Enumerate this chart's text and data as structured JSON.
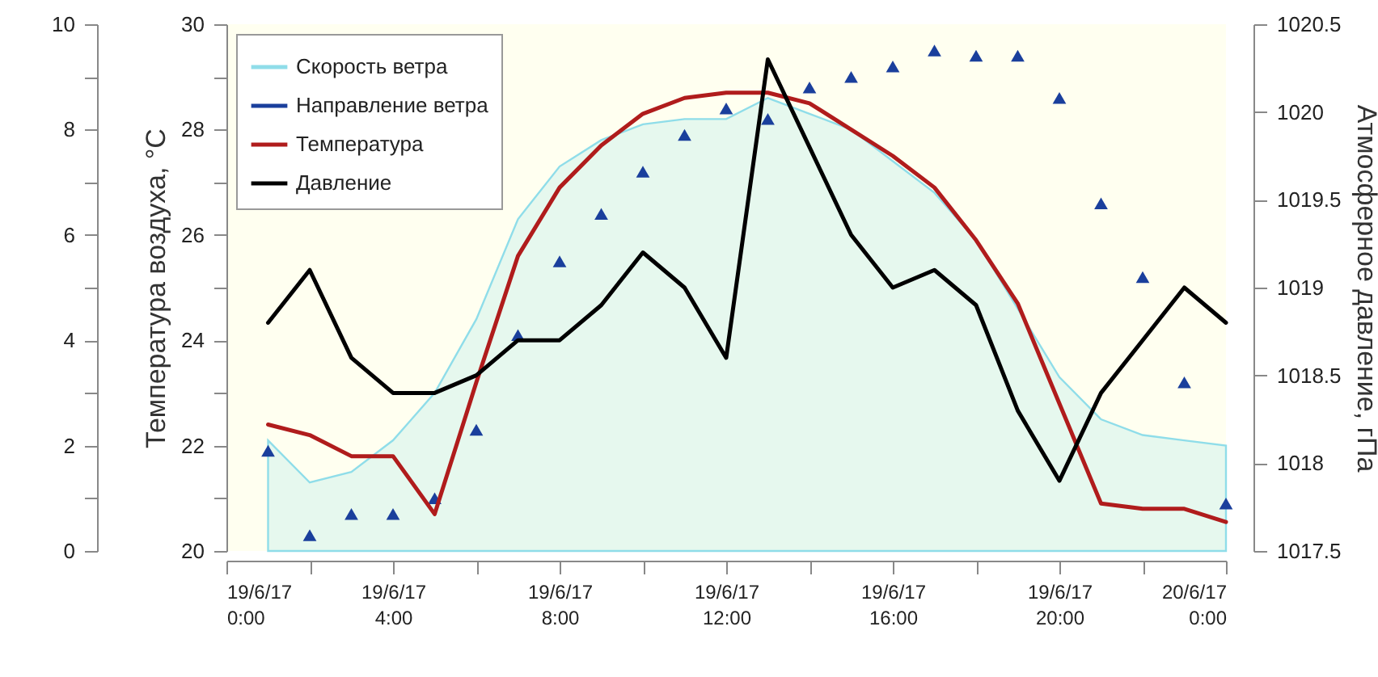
{
  "chart_data": {
    "type": "line",
    "ylabel": "Температура воздуха, °C",
    "y2label": "Атмосферное давление, гПа",
    "x": [
      "--06-19T01:00",
      "--06-19T02:00",
      "--06-19T03:00",
      "--06-19T04:00",
      "--06-19T05:00",
      "--06-19T06:00",
      "--06-19T07:00",
      "--06-19T08:00",
      "--06-19T09:00",
      "--06-19T10:00",
      "--06-19T11:00",
      "--06-19T12:00",
      "--06-19T13:00",
      "--06-19T14:00",
      "--06-19T15:00",
      "--06-19T16:00",
      "--06-19T17:00",
      "--06-19T18:00",
      "--06-19T19:00",
      "--06-19T20:00",
      "--06-19T21:00",
      "--06-19T22:00",
      "--06-19T23:00",
      "--06-20T00:00"
    ],
    "xlim": [
      "--06-19T00:00",
      "--06-20T00:00"
    ],
    "xticks": [
      {
        "value": "--06-19T00:00",
        "label": "19/6/17\n0:00"
      },
      {
        "value": "--06-19T02:00",
        "label": null
      },
      {
        "value": "--06-19T04:00",
        "label": "19/6/17\n4:00"
      },
      {
        "value": "--06-19T06:00",
        "label": null
      },
      {
        "value": "--06-19T08:00",
        "label": "19/6/17\n8:00"
      },
      {
        "value": "--06-19T10:00",
        "label": null
      },
      {
        "value": "--06-19T12:00",
        "label": "19/6/17\n12:00"
      },
      {
        "value": "--06-19T14:00",
        "label": null
      },
      {
        "value": "--06-19T16:00",
        "label": "19/6/17\n16:00"
      },
      {
        "value": "--06-19T18:00",
        "label": null
      },
      {
        "value": "--06-19T20:00",
        "label": "19/6/17\n20:00"
      },
      {
        "value": "--06-19T22:00",
        "label": null
      },
      {
        "value": "--06-20T00:00",
        "label": "20/6/17\n0:00"
      }
    ],
    "ylim": [
      20,
      30
    ],
    "yticks": [
      20,
      {
        "value": 21,
        "label": null
      },
      22,
      {
        "value": 23,
        "label": null
      },
      24,
      {
        "value": 25,
        "label": null
      },
      26,
      {
        "value": 27,
        "label": null
      },
      28,
      {
        "value": 29,
        "label": null
      },
      30
    ],
    "y2lim": [
      1017.5,
      1020.5
    ],
    "y2ticks": [
      1017.5,
      1018,
      1018.5,
      1019,
      1019.5,
      1020,
      1020.5
    ],
    "y3lim": [
      0,
      10
    ],
    "y3ticks": [
      0,
      {
        "value": 1,
        "label": null
      },
      2,
      {
        "value": 3,
        "label": null
      },
      4,
      {
        "value": 5,
        "label": null
      },
      6,
      {
        "value": 7,
        "label": null
      },
      8,
      {
        "value": 9,
        "label": null
      },
      10
    ],
    "legend": "top left",
    "series": [
      {
        "name": "Скорость ветра",
        "type": "area",
        "axis": "y3",
        "color": "#8fdde9",
        "values": [
          2.1,
          1.3,
          1.5,
          2.1,
          3.0,
          4.4,
          6.3,
          7.3,
          7.8,
          8.1,
          8.2,
          8.2,
          8.6,
          8.3,
          8.0,
          7.4,
          6.8,
          5.9,
          4.6,
          3.3,
          2.5,
          2.2,
          2.1,
          2.0
        ]
      },
      {
        "name": "Направление ветра",
        "type": "scatter",
        "axis": "y3",
        "marker": "triangle",
        "color": "#1a3f9c",
        "values": [
          1.9,
          0.3,
          0.7,
          0.7,
          1.0,
          2.3,
          4.1,
          5.5,
          6.4,
          7.2,
          7.9,
          8.4,
          8.2,
          8.8,
          9.0,
          9.2,
          9.5,
          9.4,
          9.4,
          8.6,
          6.6,
          5.2,
          3.2,
          0.9
        ]
      },
      {
        "name": "Температура",
        "axis": "y",
        "color": "#b01c1c",
        "values": [
          22.4,
          22.2,
          21.8,
          21.8,
          20.7,
          23.2,
          25.6,
          26.9,
          27.7,
          28.3,
          28.6,
          28.7,
          28.7,
          28.5,
          28.0,
          27.5,
          26.9,
          25.9,
          24.7,
          22.8,
          20.9,
          20.8,
          20.8,
          20.55
        ]
      },
      {
        "name": "Давление",
        "axis": "y2",
        "color": "#000000",
        "values": [
          1018.8,
          1019.1,
          1018.6,
          1018.4,
          1018.4,
          1018.5,
          1018.7,
          1018.7,
          1018.9,
          1019.2,
          1019.0,
          1018.6,
          1020.3,
          1019.8,
          1019.3,
          1019.0,
          1019.1,
          1018.9,
          1018.3,
          1017.9,
          1018.4,
          1018.7,
          1019.0,
          1018.8
        ]
      }
    ]
  }
}
